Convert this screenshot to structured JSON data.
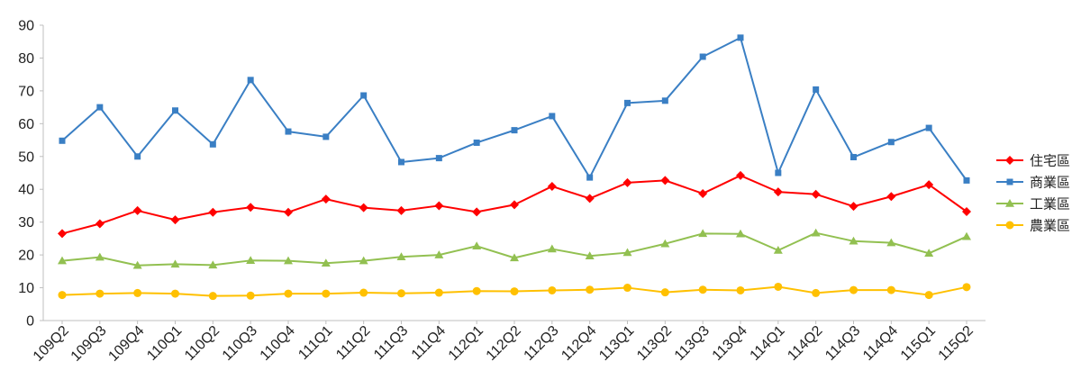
{
  "chart_data": {
    "type": "line",
    "title": "",
    "xlabel": "",
    "ylabel": "",
    "ylim": [
      0,
      90
    ],
    "yticks": [
      0,
      10,
      20,
      30,
      40,
      50,
      60,
      70,
      80,
      90
    ],
    "grid": false,
    "legend_position": "right",
    "categories": [
      "109Q2",
      "109Q3",
      "109Q4",
      "110Q1",
      "110Q2",
      "110Q3",
      "110Q4",
      "111Q1",
      "111Q2",
      "111Q3",
      "111Q4",
      "112Q1",
      "112Q2",
      "112Q3",
      "112Q4",
      "113Q1",
      "113Q2",
      "113Q3",
      "113Q4",
      "114Q1",
      "114Q2",
      "114Q3",
      "114Q4",
      "115Q1",
      "115Q2"
    ],
    "series": [
      {
        "name": "住宅區",
        "color": "#ff0000",
        "marker": "diamond",
        "values": [
          26.5,
          29.5,
          33.5,
          30.7,
          33.0,
          34.5,
          33.0,
          37.0,
          34.4,
          33.5,
          35.0,
          33.1,
          35.3,
          40.9,
          37.2,
          42.0,
          42.7,
          38.7,
          44.2,
          39.2,
          38.5,
          34.8,
          37.8,
          41.4,
          33.2
        ]
      },
      {
        "name": "商業區",
        "color": "#3a7fc4",
        "marker": "square",
        "values": [
          54.8,
          65.0,
          50.0,
          64.0,
          53.7,
          73.3,
          57.6,
          56.0,
          68.6,
          48.3,
          49.5,
          54.2,
          58.0,
          62.3,
          43.6,
          66.3,
          67.0,
          80.4,
          86.2,
          45.0,
          70.4,
          49.8,
          54.4,
          58.7,
          42.7
        ]
      },
      {
        "name": "工業區",
        "color": "#92c051",
        "marker": "triangle",
        "values": [
          18.2,
          19.3,
          16.8,
          17.2,
          16.9,
          18.3,
          18.2,
          17.5,
          18.2,
          19.4,
          20.0,
          22.7,
          19.1,
          21.8,
          19.7,
          20.7,
          23.4,
          26.5,
          26.4,
          21.4,
          26.7,
          24.2,
          23.7,
          20.5,
          25.6
        ]
      },
      {
        "name": "農業區",
        "color": "#ffc000",
        "marker": "circle",
        "values": [
          7.8,
          8.2,
          8.4,
          8.2,
          7.5,
          7.6,
          8.2,
          8.2,
          8.5,
          8.3,
          8.5,
          9.0,
          8.9,
          9.2,
          9.4,
          10.0,
          8.6,
          9.4,
          9.2,
          10.3,
          8.4,
          9.3,
          9.3,
          7.8,
          10.2
        ]
      }
    ]
  }
}
